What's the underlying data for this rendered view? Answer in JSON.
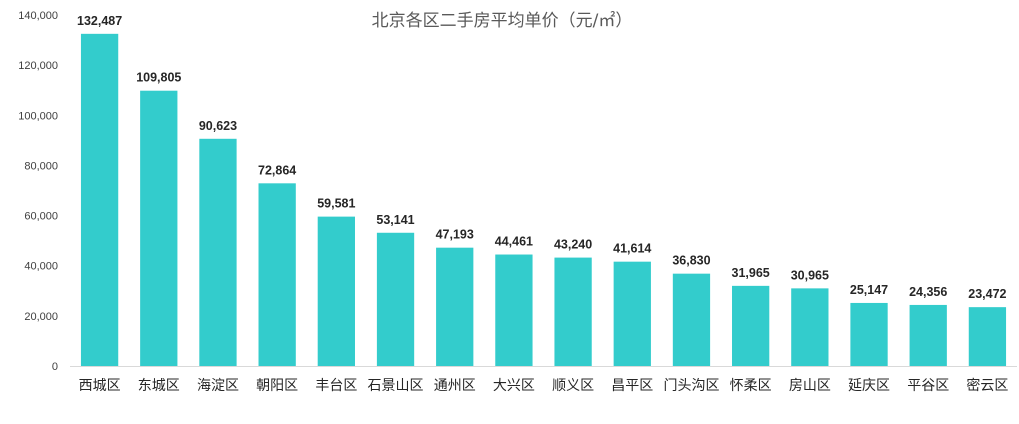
{
  "chart_data": {
    "type": "bar",
    "title": "北京各区二手房平均单价（元/㎡）",
    "xlabel": "",
    "ylabel": "",
    "categories": [
      "西城区",
      "东城区",
      "海淀区",
      "朝阳区",
      "丰台区",
      "石景山区",
      "通州区",
      "大兴区",
      "顺义区",
      "昌平区",
      "门头沟区",
      "怀柔区",
      "房山区",
      "延庆区",
      "平谷区",
      "密云区"
    ],
    "values": [
      132487,
      109805,
      90623,
      72864,
      59581,
      53141,
      47193,
      44461,
      43240,
      41614,
      36830,
      31965,
      30965,
      25147,
      24356,
      23472
    ],
    "value_labels": [
      "132,487",
      "109,805",
      "90,623",
      "72,864",
      "59,581",
      "53,141",
      "47,193",
      "44,461",
      "43,240",
      "41,614",
      "36,830",
      "31,965",
      "30,965",
      "25,147",
      "24,356",
      "23,472"
    ],
    "ylim": [
      0,
      140000
    ],
    "yticks": [
      0,
      20000,
      40000,
      60000,
      80000,
      100000,
      120000,
      140000
    ],
    "ytick_labels": [
      "0",
      "20,000",
      "40,000",
      "60,000",
      "80,000",
      "100,000",
      "120,000",
      "140,000"
    ],
    "grid": false,
    "legend": "none",
    "colors": {
      "bar": "#33CCCC",
      "axis": "#D9D9D9",
      "text": "#262626"
    }
  }
}
